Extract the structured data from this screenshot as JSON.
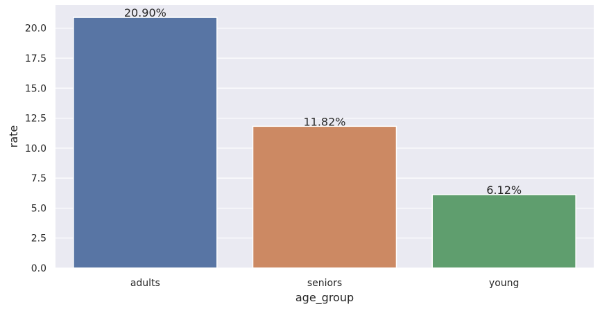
{
  "chart_data": {
    "type": "bar",
    "categories": [
      "adults",
      "seniors",
      "young"
    ],
    "values": [
      20.9,
      11.82,
      6.12
    ],
    "data_labels": [
      "20.90%",
      "11.82%",
      "6.12%"
    ],
    "colors": [
      "#5875a4",
      "#cc8963",
      "#5f9e6e"
    ],
    "title": "",
    "xlabel": "age_group",
    "ylabel": "rate",
    "ylim": [
      0,
      21.945
    ],
    "yticks": [
      0.0,
      2.5,
      5.0,
      7.5,
      10.0,
      12.5,
      15.0,
      17.5,
      20.0
    ],
    "ytick_labels": [
      "0.0",
      "2.5",
      "5.0",
      "7.5",
      "10.0",
      "12.5",
      "15.0",
      "17.5",
      "20.0"
    ],
    "grid": true,
    "background": "#eaeaf2",
    "grid_color": "#ffffff"
  }
}
